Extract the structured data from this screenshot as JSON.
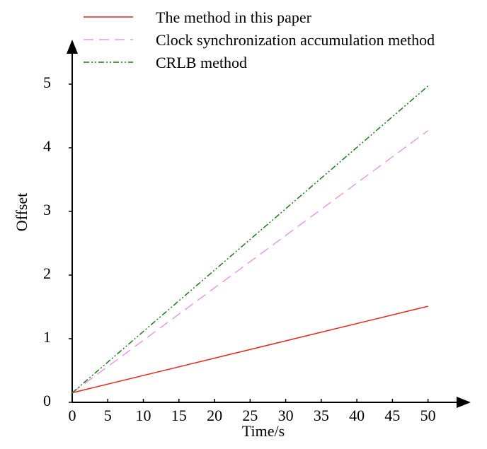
{
  "chart_data": {
    "type": "line",
    "xlabel": "Time/s",
    "ylabel": "Offset",
    "x": [
      0,
      50
    ],
    "series": [
      {
        "name": "The method in this paper",
        "color": "#e8261f",
        "dash": "solid",
        "values": [
          0.15,
          1.51
        ]
      },
      {
        "name": "Clock synchronization accumulation method",
        "color": "#e39be8",
        "dash": "dashed",
        "values": [
          0.15,
          4.27
        ]
      },
      {
        "name": "CRLB method",
        "color": "#1a7a1a",
        "dash": "dashdot",
        "values": [
          0.15,
          4.97
        ]
      }
    ],
    "xlim": [
      0,
      56
    ],
    "ylim": [
      0,
      5.7
    ],
    "xticks": [
      0,
      5,
      10,
      15,
      20,
      25,
      30,
      35,
      40,
      45,
      50
    ],
    "yticks": [
      0,
      1,
      2,
      3,
      4,
      5
    ]
  }
}
